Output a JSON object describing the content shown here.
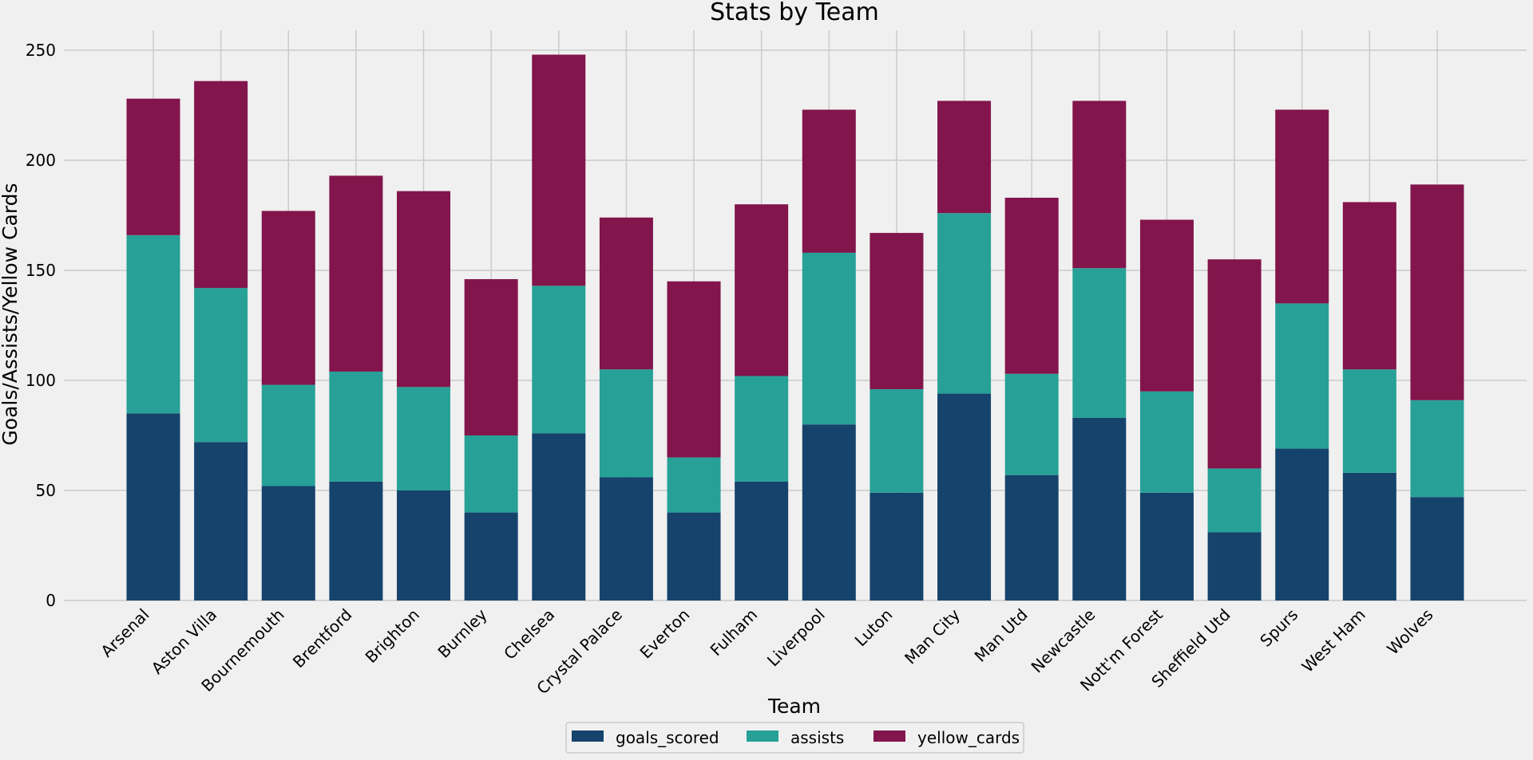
{
  "colors": {
    "background": "#f0f0f0",
    "grid": "#cbcbcb",
    "goals_scored": "#15436c",
    "assists": "#27a197",
    "yellow_cards": "#82154b"
  },
  "chart_data": {
    "type": "bar",
    "stacked": true,
    "title": "Stats by Team",
    "xlabel": "Team",
    "ylabel": "Goals/Assists/Yellow Cards",
    "ylim": [
      0,
      260
    ],
    "yticks": [
      0,
      50,
      100,
      150,
      200,
      250
    ],
    "grid": true,
    "legend_position": "bottom-center",
    "categories": [
      "Arsenal",
      "Aston Villa",
      "Bournemouth",
      "Brentford",
      "Brighton",
      "Burnley",
      "Chelsea",
      "Crystal Palace",
      "Everton",
      "Fulham",
      "Liverpool",
      "Luton",
      "Man City",
      "Man Utd",
      "Newcastle",
      "Nott'm Forest",
      "Sheffield Utd",
      "Spurs",
      "West Ham",
      "Wolves"
    ],
    "series": [
      {
        "name": "goals_scored",
        "values": [
          85,
          72,
          52,
          54,
          50,
          40,
          76,
          56,
          40,
          54,
          80,
          49,
          94,
          57,
          83,
          49,
          31,
          69,
          58,
          47
        ]
      },
      {
        "name": "assists",
        "values": [
          81,
          70,
          46,
          50,
          47,
          35,
          67,
          49,
          25,
          48,
          78,
          47,
          82,
          46,
          68,
          46,
          29,
          66,
          47,
          44
        ]
      },
      {
        "name": "yellow_cards",
        "values": [
          62,
          94,
          79,
          89,
          89,
          71,
          105,
          69,
          80,
          78,
          65,
          71,
          51,
          80,
          76,
          78,
          95,
          88,
          76,
          98
        ]
      }
    ]
  }
}
